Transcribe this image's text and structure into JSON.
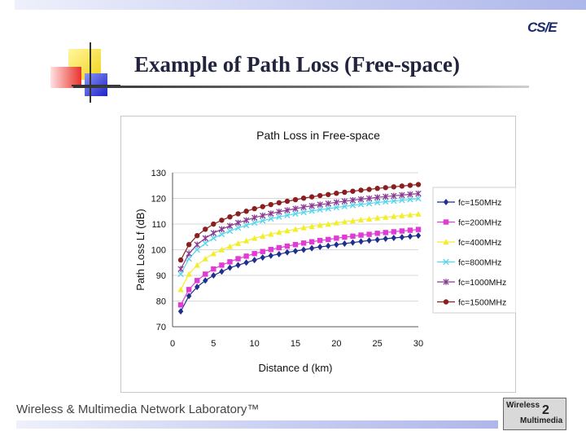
{
  "slide": {
    "title": "Example of Path Loss (Free-space)",
    "footer": "Wireless & Multimedia Network Laboratory™",
    "logo_text": "CS/E",
    "lab_logo": {
      "line1": "Wireless",
      "line2": "Multimedia",
      "number": "2"
    },
    "colors": {
      "top_bar": "#b7c0ec",
      "title": "#22243e"
    }
  },
  "chart_data": {
    "type": "line",
    "title": "Path Loss in Free-space",
    "xlabel": "Distance d (km)",
    "ylabel": "Path Loss Lf (dB)",
    "xlim": [
      0,
      30
    ],
    "ylim": [
      70,
      130
    ],
    "xticks": [
      "0",
      "5",
      "10",
      "15",
      "20",
      "25",
      "30"
    ],
    "yticks": [
      "70",
      "80",
      "90",
      "100",
      "110",
      "120",
      "130"
    ],
    "grid": true,
    "legend_position": "right",
    "x": [
      1,
      2,
      3,
      4,
      5,
      6,
      7,
      8,
      9,
      10,
      11,
      12,
      13,
      14,
      15,
      16,
      17,
      18,
      19,
      20,
      21,
      22,
      23,
      24,
      25,
      26,
      27,
      28,
      29,
      30
    ],
    "series": [
      {
        "name": "fc=150MHz",
        "color": "#1f2f8f",
        "marker": "diamond",
        "values": [
          76,
          82,
          85.5,
          88,
          90,
          91.5,
          93,
          94,
          95,
          96,
          97,
          97.7,
          98.3,
          99,
          99.5,
          100,
          100.6,
          101.1,
          101.5,
          102,
          102.4,
          102.8,
          103.2,
          103.6,
          103.9,
          104.3,
          104.6,
          104.9,
          105.2,
          105.5
        ]
      },
      {
        "name": "fc=200MHz",
        "color": "#e13bd6",
        "marker": "square",
        "values": [
          78.5,
          84.5,
          88,
          90.5,
          92.5,
          94,
          95.3,
          96.5,
          97.5,
          98.5,
          99.3,
          100.1,
          100.8,
          101.4,
          102,
          102.6,
          103.1,
          103.6,
          104,
          104.5,
          104.9,
          105.3,
          105.7,
          106,
          106.4,
          106.7,
          107,
          107.3,
          107.6,
          107.9
        ]
      },
      {
        "name": "fc=400MHz",
        "color": "#f2ee2a",
        "marker": "triangle",
        "values": [
          84.5,
          90.5,
          94,
          96.5,
          98.5,
          100,
          101.3,
          102.5,
          103.5,
          104.5,
          105.3,
          106.1,
          106.8,
          107.4,
          108,
          108.6,
          109.1,
          109.6,
          110,
          110.5,
          110.9,
          111.3,
          111.7,
          112,
          112.4,
          112.7,
          113,
          113.3,
          113.6,
          113.9
        ]
      },
      {
        "name": "fc=800MHz",
        "color": "#56d6ee",
        "marker": "x",
        "values": [
          90.5,
          96.5,
          100,
          102.5,
          104.5,
          106,
          107.3,
          108.5,
          109.5,
          110.5,
          111.3,
          112.1,
          112.8,
          113.4,
          114,
          114.6,
          115.1,
          115.6,
          116,
          116.5,
          116.9,
          117.3,
          117.7,
          118,
          118.4,
          118.7,
          119,
          119.3,
          119.6,
          119.9
        ]
      },
      {
        "name": "fc=1000MHz",
        "color": "#8a3a93",
        "marker": "star",
        "values": [
          92.5,
          98.5,
          102,
          104.5,
          106.5,
          108,
          109.3,
          110.5,
          111.5,
          112.5,
          113.3,
          114.1,
          114.8,
          115.4,
          116,
          116.6,
          117.1,
          117.6,
          118,
          118.5,
          118.9,
          119.3,
          119.7,
          120,
          120.4,
          120.7,
          121,
          121.3,
          121.6,
          121.9
        ]
      },
      {
        "name": "fc=1500MHz",
        "color": "#8b1f1f",
        "marker": "circle",
        "values": [
          96,
          102,
          105.5,
          108,
          110,
          111.5,
          112.8,
          114,
          115,
          116,
          116.8,
          117.6,
          118.3,
          118.9,
          119.5,
          120.1,
          120.6,
          121.1,
          121.5,
          122,
          122.4,
          122.8,
          123.2,
          123.5,
          123.9,
          124.2,
          124.5,
          124.8,
          125.1,
          125.4
        ]
      }
    ]
  }
}
